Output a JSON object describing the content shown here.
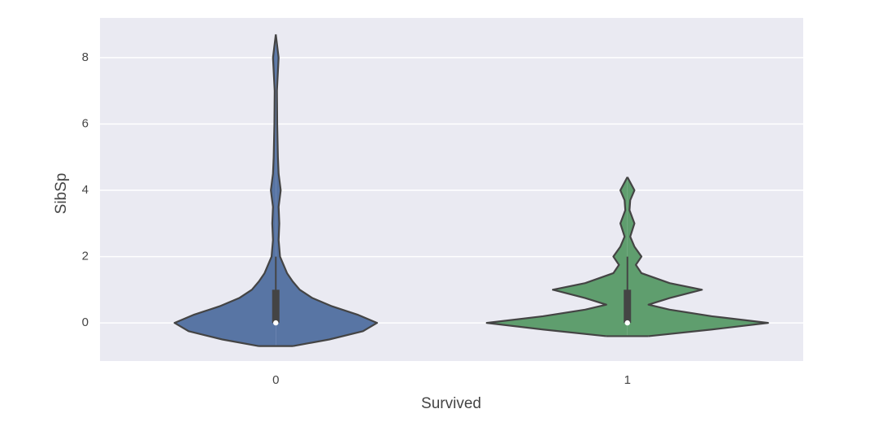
{
  "chart_data": {
    "type": "violin",
    "x_label": "Survived",
    "y_label": "SibSp",
    "categories": [
      "0",
      "1"
    ],
    "series": [
      {
        "color": "#5875a4",
        "density_y": [
          -0.7,
          -0.5,
          -0.25,
          0,
          0.25,
          0.5,
          0.75,
          1,
          1.25,
          1.5,
          2,
          2.5,
          3,
          3.5,
          4,
          4.5,
          5,
          6,
          7,
          8,
          8.7
        ],
        "density_width": [
          0.12,
          0.38,
          0.62,
          0.72,
          0.58,
          0.4,
          0.26,
          0.17,
          0.12,
          0.08,
          0.03,
          0.02,
          0.025,
          0.02,
          0.035,
          0.02,
          0.015,
          0.01,
          0.008,
          0.02,
          0
        ],
        "median": 0,
        "q1": 0,
        "q3": 1,
        "whisker_low": 0,
        "whisker_high": 2
      },
      {
        "color": "#5f9e6e",
        "density_y": [
          -0.4,
          -0.2,
          0,
          0.2,
          0.4,
          0.55,
          0.75,
          1,
          1.2,
          1.5,
          1.75,
          2,
          2.3,
          2.6,
          3,
          3.4,
          3.7,
          4,
          4.4
        ],
        "density_width": [
          0.15,
          0.6,
          1.0,
          0.6,
          0.3,
          0.15,
          0.3,
          0.53,
          0.3,
          0.1,
          0.06,
          0.1,
          0.05,
          0.02,
          0.05,
          0.015,
          0.02,
          0.05,
          0
        ],
        "median": 0,
        "q1": 0,
        "q3": 1,
        "whisker_low": 0,
        "whisker_high": 2
      }
    ],
    "ylim": [
      -1.15,
      9.2
    ],
    "yticks": [
      0,
      2,
      4,
      6,
      8
    ],
    "grid": true,
    "background": "#eaeaf2"
  }
}
